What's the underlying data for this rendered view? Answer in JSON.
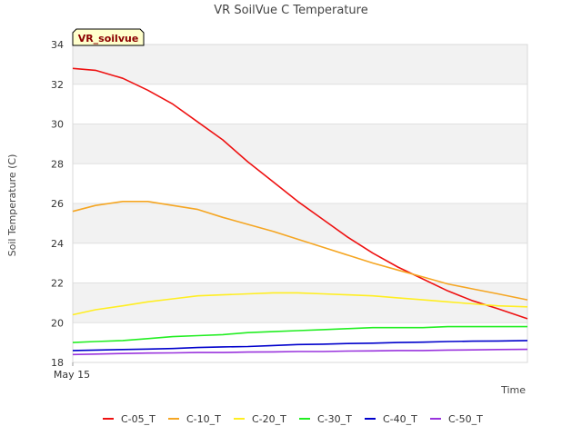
{
  "chart_data": {
    "type": "line",
    "title": "VR SoilVue C Temperature",
    "xlabel": "Time",
    "ylabel": "Soil Temperature (C)",
    "station_label": "VR_soilvue",
    "ylim": [
      18,
      34
    ],
    "yticks": [
      18,
      20,
      22,
      24,
      26,
      28,
      30,
      32,
      34
    ],
    "xlim": [
      0,
      1
    ],
    "xticks": [
      {
        "x": 0,
        "label": "May 15"
      }
    ],
    "x": [
      0,
      0.05,
      0.11,
      0.165,
      0.22,
      0.275,
      0.33,
      0.385,
      0.44,
      0.495,
      0.55,
      0.605,
      0.66,
      0.715,
      0.77,
      0.825,
      0.88,
      0.935,
      1.0
    ],
    "series": [
      {
        "name": "C-05_T",
        "color": "#ee1111",
        "values": [
          32.8,
          32.7,
          32.3,
          31.7,
          31.0,
          30.1,
          29.2,
          28.1,
          27.1,
          26.1,
          25.2,
          24.3,
          23.5,
          22.8,
          22.2,
          21.6,
          21.1,
          20.7,
          20.2
        ]
      },
      {
        "name": "C-10_T",
        "color": "#f5a623",
        "values": [
          25.6,
          25.9,
          26.1,
          26.1,
          25.9,
          25.7,
          25.3,
          24.95,
          24.6,
          24.2,
          23.8,
          23.4,
          23.0,
          22.65,
          22.3,
          21.95,
          21.7,
          21.45,
          21.15
        ]
      },
      {
        "name": "C-20_T",
        "color": "#ffee22",
        "values": [
          20.4,
          20.65,
          20.85,
          21.05,
          21.2,
          21.35,
          21.4,
          21.45,
          21.5,
          21.5,
          21.45,
          21.4,
          21.35,
          21.25,
          21.15,
          21.05,
          20.95,
          20.85,
          20.8
        ]
      },
      {
        "name": "C-30_T",
        "color": "#22ee22",
        "values": [
          19.0,
          19.05,
          19.1,
          19.2,
          19.3,
          19.35,
          19.4,
          19.5,
          19.55,
          19.6,
          19.65,
          19.7,
          19.75,
          19.75,
          19.75,
          19.8,
          19.8,
          19.8,
          19.8
        ]
      },
      {
        "name": "C-40_T",
        "color": "#0000cc",
        "values": [
          18.6,
          18.62,
          18.65,
          18.67,
          18.7,
          18.75,
          18.78,
          18.8,
          18.85,
          18.9,
          18.92,
          18.95,
          18.97,
          19.0,
          19.02,
          19.05,
          19.07,
          19.08,
          19.1
        ]
      },
      {
        "name": "C-50_T",
        "color": "#9933dd",
        "values": [
          18.4,
          18.42,
          18.45,
          18.47,
          18.48,
          18.5,
          18.5,
          18.52,
          18.53,
          18.55,
          18.55,
          18.57,
          18.58,
          18.6,
          18.6,
          18.62,
          18.63,
          18.65,
          18.66
        ]
      }
    ],
    "grid": true,
    "legend_position": "bottom"
  }
}
